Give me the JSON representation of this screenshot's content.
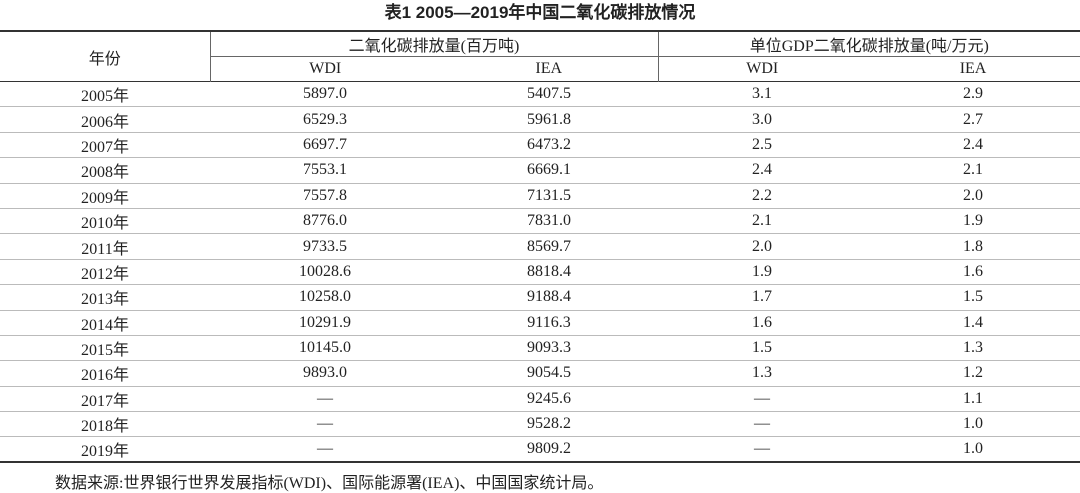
{
  "title": "表1 2005—2019年中国二氧化碳排放情况",
  "header": {
    "year": "年份",
    "group1": "二氧化碳排放量(百万吨)",
    "group2": "单位GDP二氧化碳排放量(吨/万元)",
    "sub": [
      "WDI",
      "IEA",
      "WDI",
      "IEA"
    ]
  },
  "table": {
    "rows": [
      [
        "2005年",
        "5897.0",
        "5407.5",
        "3.1",
        "2.9"
      ],
      [
        "2006年",
        "6529.3",
        "5961.8",
        "3.0",
        "2.7"
      ],
      [
        "2007年",
        "6697.7",
        "6473.2",
        "2.5",
        "2.4"
      ],
      [
        "2008年",
        "7553.1",
        "6669.1",
        "2.4",
        "2.1"
      ],
      [
        "2009年",
        "7557.8",
        "7131.5",
        "2.2",
        "2.0"
      ],
      [
        "2010年",
        "8776.0",
        "7831.0",
        "2.1",
        "1.9"
      ],
      [
        "2011年",
        "9733.5",
        "8569.7",
        "2.0",
        "1.8"
      ],
      [
        "2012年",
        "10028.6",
        "8818.4",
        "1.9",
        "1.6"
      ],
      [
        "2013年",
        "10258.0",
        "9188.4",
        "1.7",
        "1.5"
      ],
      [
        "2014年",
        "10291.9",
        "9116.3",
        "1.6",
        "1.4"
      ],
      [
        "2015年",
        "10145.0",
        "9093.3",
        "1.5",
        "1.3"
      ],
      [
        "2016年",
        "9893.0",
        "9054.5",
        "1.3",
        "1.2"
      ],
      [
        "2017年",
        "—",
        "9245.6",
        "—",
        "1.1"
      ],
      [
        "2018年",
        "—",
        "9528.2",
        "—",
        "1.0"
      ],
      [
        "2019年",
        "—",
        "9809.2",
        "—",
        "1.0"
      ]
    ]
  },
  "source": "数据来源:世界银行世界发展指标(WDI)、国际能源署(IEA)、中国国家统计局。"
}
